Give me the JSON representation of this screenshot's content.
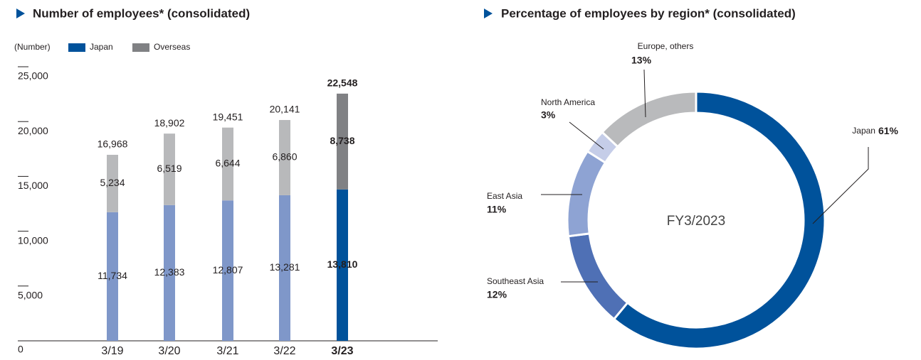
{
  "chart_data": [
    {
      "type": "stacked_bar",
      "title": "Number of employees* (consolidated)",
      "unit_label": "(Number)",
      "categories": [
        "3/19",
        "3/20",
        "3/21",
        "3/22",
        "3/23"
      ],
      "series": [
        {
          "name": "Japan",
          "color": "#00529b",
          "faded_color": "#7f97c9",
          "values": [
            11734,
            12383,
            12807,
            13281,
            13810
          ],
          "value_labels": [
            "11,734",
            "12,383",
            "12,807",
            "13,281",
            "13,810"
          ]
        },
        {
          "name": "Overseas",
          "color": "#808184",
          "faded_color": "#b8b9bb",
          "values": [
            5234,
            6519,
            6644,
            6860,
            8738
          ],
          "value_labels": [
            "5,234",
            "6,519",
            "6,644",
            "6,860",
            "8,738"
          ]
        }
      ],
      "total_labels": [
        "16,968",
        "18,902",
        "19,451",
        "20,141",
        "22,548"
      ],
      "highlight_index": 4,
      "ylim": [
        0,
        25000
      ],
      "yticks": [
        0,
        {
          "value": 5000,
          "label": "5,000"
        },
        {
          "value": 10000,
          "label": "10,000"
        },
        {
          "value": 15000,
          "label": "15,000"
        },
        {
          "value": 20000,
          "label": "20,000"
        },
        {
          "value": 25000,
          "label": "25,000"
        }
      ]
    },
    {
      "type": "donut",
      "title": "Percentage of employees by region* (consolidated)",
      "center_label": "FY3/2023",
      "categories": [
        "Japan",
        "Southeast Asia",
        "East Asia",
        "North America",
        "Europe, others"
      ],
      "values": [
        61,
        12,
        11,
        3,
        13
      ],
      "value_labels": [
        "61%",
        "12%",
        "11%",
        "3%",
        "13%"
      ],
      "colors": [
        "#00529b",
        "#4f70b5",
        "#8ea3d3",
        "#c5cde8",
        "#b9babc"
      ]
    }
  ]
}
